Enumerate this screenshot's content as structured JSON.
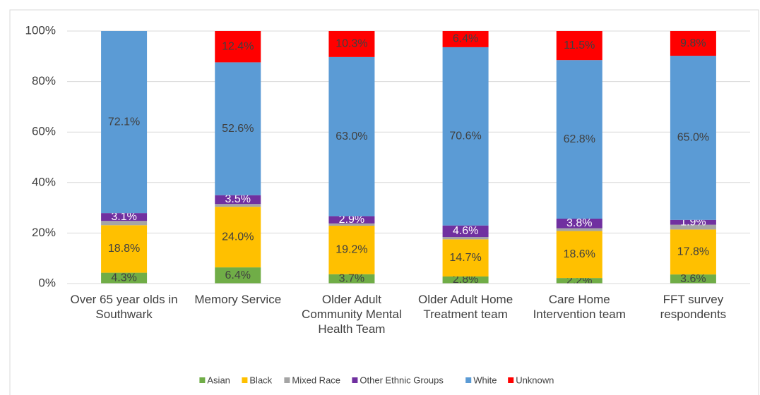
{
  "chart_data": {
    "type": "stacked_bar",
    "categories": [
      "Over 65 year olds in Southwark",
      "Memory Service",
      "Older Adult Community Mental Health Team",
      "Older Adult Home Treatment team",
      "Care Home Intervention team",
      "FFT survey respondents"
    ],
    "series": [
      {
        "name": "Asian",
        "color": "#70ad47",
        "values": [
          4.3,
          6.4,
          3.7,
          2.8,
          2.2,
          3.6
        ],
        "value_labels": [
          "4.3%",
          "6.4%",
          "3.7%",
          "2.8%",
          "2.2%",
          "3.6%"
        ]
      },
      {
        "name": "Black",
        "color": "#ffc000",
        "values": [
          18.8,
          24.0,
          19.2,
          14.7,
          18.6,
          17.8
        ],
        "value_labels": [
          "18.8%",
          "24.0%",
          "19.2%",
          "14.7%",
          "18.6%",
          "17.8%"
        ]
      },
      {
        "name": "Mixed Race",
        "color": "#a5a5a5",
        "values": [
          1.7,
          1.1,
          0.9,
          0.9,
          1.1,
          1.9
        ]
      },
      {
        "name": "Other Ethnic Groups",
        "color": "#7030a0",
        "values": [
          3.1,
          3.5,
          2.9,
          4.6,
          3.8,
          1.9
        ],
        "value_labels": [
          "3.1%",
          "3.5%",
          "2.9%",
          "4.6%",
          "3.8%",
          "1.9%"
        ]
      },
      {
        "name": "White",
        "color": "#5b9bd5",
        "values": [
          72.1,
          52.6,
          63.0,
          70.6,
          62.8,
          65.0
        ],
        "value_labels": [
          "72.1%",
          "52.6%",
          "63.0%",
          "70.6%",
          "62.8%",
          "65.0%"
        ]
      },
      {
        "name": "Unknown",
        "color": "#ff0000",
        "values": [
          0,
          12.4,
          10.3,
          6.4,
          11.5,
          9.8
        ],
        "value_labels": [
          null,
          "12.4%",
          "10.3%",
          "6.4%",
          "11.5%",
          "9.8%"
        ]
      }
    ],
    "ylim": [
      0,
      100
    ],
    "yticks": [
      {
        "value": 0,
        "label": "0%"
      },
      {
        "value": 20,
        "label": "20%"
      },
      {
        "value": 40,
        "label": "40%"
      },
      {
        "value": 60,
        "label": "60%"
      },
      {
        "value": 80,
        "label": "80%"
      },
      {
        "value": 100,
        "label": "100%"
      }
    ],
    "grid": true,
    "legend": "bottom"
  }
}
